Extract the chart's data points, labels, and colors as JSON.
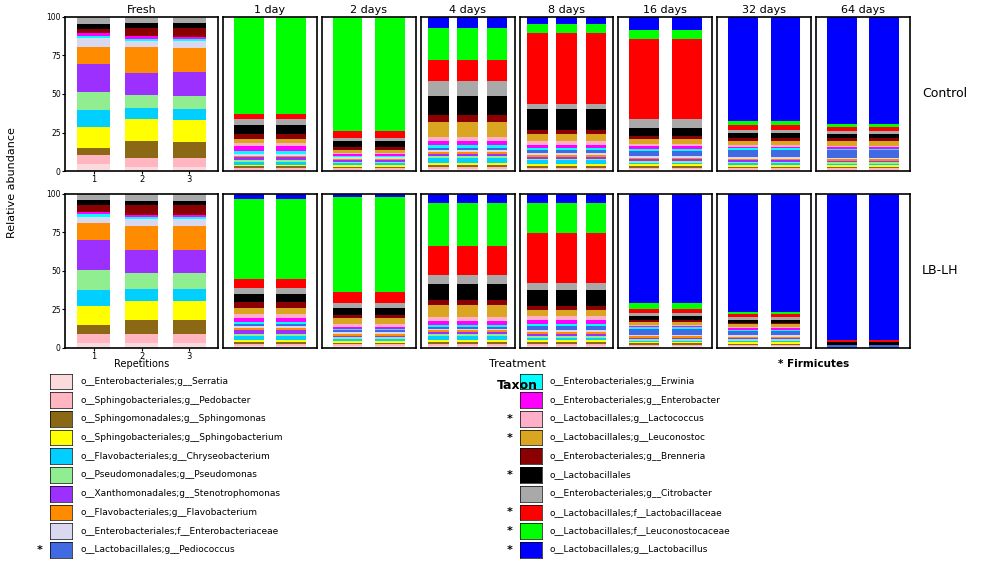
{
  "time_points": [
    "Fresh",
    "1 day",
    "2 days",
    "4 days",
    "8 days",
    "16 days",
    "32 days",
    "64 days"
  ],
  "taxa": [
    "o__Enterobacteriales;g__Serratia",
    "o__Sphingobacteriales;g__Pedobacter",
    "o__Sphingomonadales;g__Sphingomonas",
    "o__Sphingobacteriales;g__Sphingobacterium",
    "o__Flavobacteriales;g__Chryseobacterium",
    "o__Pseudomonadales;g__Pseudomonas",
    "o__Xanthomonadales;g__Stenotrophomonas",
    "o__Flavobacteriales;g__Flavobacterium",
    "o__Enterobacteriales;f__Enterobacteriaceae",
    "o__Lactobacillales;g__Pediococcus",
    "o__Enterobacteriales;g__Erwinia",
    "o__Enterobacteriales;g__Enterobacter",
    "o__Lactobacillales;g__Lactococcus",
    "o__Lactobacillales;g__Leuconostoc",
    "o__Enterobacteriales;g__Brenneria",
    "o__Lactobacillales",
    "o__Enterobacteriales;g__Citrobacter",
    "o__Lactobacillales;f__Lactobacillaceae",
    "o__Lactobacillales;f__Leuconostocaceae",
    "o__Lactobacillales;g__Lactobacillus"
  ],
  "colors": [
    "#FADADD",
    "#FFB6C1",
    "#8B6914",
    "#FFFF00",
    "#00CFFF",
    "#90EE90",
    "#9B30FF",
    "#FF8C00",
    "#D8D8F0",
    "#4169E1",
    "#00FFFF",
    "#FF00FF",
    "#FFB0C8",
    "#DAA520",
    "#8B0000",
    "#000000",
    "#A9A9A9",
    "#FF0000",
    "#00FF00",
    "#0000FF"
  ],
  "legend_stars": [
    false,
    false,
    false,
    false,
    false,
    false,
    false,
    false,
    false,
    true,
    false,
    false,
    true,
    true,
    false,
    true,
    false,
    true,
    true,
    true
  ],
  "ylabel": "Relative abundance",
  "row_labels": [
    "Control",
    "LB-LH"
  ],
  "control_data": {
    "Fresh": [
      [
        3,
        4,
        3,
        9,
        7,
        8,
        12,
        7,
        4,
        0,
        1,
        1,
        0,
        0,
        2,
        2,
        3,
        0,
        0,
        0
      ],
      [
        2,
        4,
        8,
        10,
        5,
        6,
        10,
        12,
        3,
        0,
        1,
        1,
        0,
        0,
        4,
        2,
        3,
        0,
        0,
        0
      ],
      [
        2,
        4,
        7,
        10,
        5,
        6,
        11,
        11,
        3,
        0,
        1,
        1,
        0,
        0,
        4,
        2,
        3,
        0,
        0,
        0
      ]
    ],
    "1 day": [
      [
        1,
        1,
        1,
        1,
        2,
        1,
        2,
        1,
        1,
        0,
        2,
        3,
        2,
        3,
        3,
        6,
        4,
        3,
        63,
        0
      ],
      [
        1,
        1,
        1,
        1,
        2,
        1,
        2,
        1,
        1,
        0,
        2,
        3,
        2,
        3,
        3,
        6,
        4,
        3,
        63,
        0
      ]
    ],
    "2 days": [
      [
        1,
        1,
        1,
        1,
        1,
        1,
        1,
        1,
        1,
        0,
        1,
        1,
        1,
        2,
        2,
        4,
        2,
        4,
        75,
        0
      ],
      [
        1,
        1,
        1,
        1,
        1,
        1,
        1,
        1,
        1,
        0,
        1,
        1,
        1,
        2,
        2,
        4,
        2,
        4,
        75,
        0
      ]
    ],
    "4 days": [
      [
        1,
        1,
        1,
        1,
        2,
        1,
        1,
        1,
        1,
        1,
        1,
        2,
        2,
        7,
        3,
        9,
        7,
        10,
        15,
        5
      ],
      [
        1,
        1,
        1,
        1,
        2,
        1,
        1,
        1,
        1,
        1,
        1,
        2,
        2,
        7,
        3,
        9,
        7,
        10,
        15,
        5
      ],
      [
        1,
        1,
        1,
        1,
        2,
        1,
        1,
        1,
        1,
        1,
        1,
        2,
        2,
        7,
        3,
        9,
        7,
        10,
        15,
        5
      ]
    ],
    "8 days": [
      [
        1,
        1,
        1,
        1,
        2,
        1,
        1,
        1,
        1,
        2,
        1,
        2,
        2,
        4,
        2,
        12,
        3,
        40,
        5,
        4
      ],
      [
        1,
        1,
        1,
        1,
        2,
        1,
        1,
        1,
        1,
        2,
        1,
        2,
        2,
        4,
        2,
        12,
        3,
        40,
        5,
        4
      ],
      [
        1,
        1,
        1,
        1,
        2,
        1,
        1,
        1,
        1,
        2,
        1,
        2,
        2,
        4,
        2,
        12,
        3,
        40,
        5,
        4
      ]
    ],
    "16 days": [
      [
        1,
        1,
        1,
        1,
        1,
        1,
        1,
        1,
        1,
        3,
        1,
        2,
        1,
        3,
        2,
        5,
        5,
        48,
        5,
        8
      ],
      [
        1,
        1,
        1,
        1,
        1,
        1,
        1,
        1,
        1,
        3,
        1,
        2,
        1,
        3,
        2,
        5,
        5,
        48,
        5,
        8
      ]
    ],
    "32 days": [
      [
        1,
        1,
        1,
        1,
        1,
        1,
        1,
        1,
        1,
        5,
        1,
        1,
        1,
        3,
        2,
        3,
        2,
        3,
        3,
        68
      ],
      [
        1,
        1,
        1,
        1,
        1,
        1,
        1,
        1,
        1,
        5,
        1,
        1,
        1,
        3,
        2,
        3,
        2,
        3,
        3,
        68
      ]
    ],
    "64 days": [
      [
        1,
        1,
        1,
        1,
        1,
        1,
        1,
        1,
        1,
        5,
        1,
        1,
        1,
        3,
        2,
        3,
        2,
        3,
        2,
        72
      ],
      [
        1,
        1,
        1,
        1,
        1,
        1,
        1,
        1,
        1,
        5,
        1,
        1,
        1,
        3,
        2,
        3,
        2,
        3,
        2,
        72
      ]
    ]
  },
  "lblh_data": {
    "Fresh": [
      [
        2,
        4,
        4,
        8,
        7,
        9,
        13,
        7,
        3,
        0,
        1,
        1,
        0,
        0,
        3,
        2,
        3,
        0,
        0,
        0
      ],
      [
        2,
        4,
        6,
        8,
        5,
        7,
        10,
        10,
        3,
        0,
        1,
        1,
        0,
        0,
        4,
        2,
        3,
        0,
        0,
        0
      ],
      [
        2,
        4,
        6,
        8,
        5,
        7,
        10,
        10,
        3,
        0,
        1,
        1,
        0,
        0,
        4,
        2,
        3,
        0,
        0,
        0
      ]
    ],
    "1 day": [
      [
        1,
        1,
        1,
        1,
        2,
        1,
        2,
        1,
        1,
        1,
        1,
        2,
        2,
        3,
        3,
        4,
        3,
        5,
        40,
        3
      ],
      [
        1,
        1,
        1,
        1,
        2,
        1,
        2,
        1,
        1,
        1,
        1,
        2,
        2,
        3,
        3,
        4,
        3,
        5,
        40,
        3
      ]
    ],
    "2 days": [
      [
        1,
        1,
        1,
        1,
        1,
        1,
        1,
        1,
        1,
        1,
        1,
        1,
        2,
        3,
        2,
        4,
        3,
        6,
        55,
        2
      ],
      [
        1,
        1,
        1,
        1,
        1,
        1,
        1,
        1,
        1,
        1,
        1,
        1,
        2,
        3,
        2,
        4,
        3,
        6,
        55,
        2
      ]
    ],
    "4 days": [
      [
        1,
        1,
        1,
        1,
        2,
        1,
        1,
        1,
        1,
        1,
        1,
        2,
        2,
        6,
        3,
        8,
        5,
        15,
        22,
        5
      ],
      [
        1,
        1,
        1,
        1,
        2,
        1,
        1,
        1,
        1,
        1,
        1,
        2,
        2,
        6,
        3,
        8,
        5,
        15,
        22,
        5
      ],
      [
        1,
        1,
        1,
        1,
        2,
        1,
        1,
        1,
        1,
        1,
        1,
        2,
        2,
        6,
        3,
        8,
        5,
        15,
        22,
        5
      ]
    ],
    "8 days": [
      [
        1,
        1,
        1,
        1,
        1,
        1,
        1,
        1,
        1,
        2,
        1,
        2,
        2,
        3,
        2,
        8,
        4,
        25,
        15,
        5
      ],
      [
        1,
        1,
        1,
        1,
        1,
        1,
        1,
        1,
        1,
        2,
        1,
        2,
        2,
        3,
        2,
        8,
        4,
        25,
        15,
        5
      ],
      [
        1,
        1,
        1,
        1,
        1,
        1,
        1,
        1,
        1,
        2,
        1,
        2,
        2,
        3,
        2,
        8,
        4,
        25,
        15,
        5
      ]
    ],
    "16 days": [
      [
        1,
        1,
        1,
        1,
        1,
        1,
        1,
        1,
        1,
        4,
        1,
        1,
        1,
        2,
        1,
        3,
        2,
        3,
        4,
        75
      ],
      [
        1,
        1,
        1,
        1,
        1,
        1,
        1,
        1,
        1,
        4,
        1,
        1,
        1,
        2,
        1,
        3,
        2,
        3,
        4,
        75
      ]
    ],
    "32 days": [
      [
        1,
        1,
        1,
        1,
        1,
        1,
        1,
        1,
        1,
        3,
        1,
        1,
        1,
        2,
        1,
        2,
        2,
        2,
        2,
        85
      ],
      [
        1,
        1,
        1,
        1,
        1,
        1,
        1,
        1,
        1,
        3,
        1,
        1,
        1,
        2,
        1,
        2,
        2,
        2,
        2,
        85
      ]
    ],
    "64 days": [
      [
        0,
        0,
        0,
        0,
        0,
        0,
        0,
        0,
        0,
        2,
        0,
        0,
        0,
        0,
        0,
        2,
        0,
        1,
        0,
        95
      ],
      [
        0,
        0,
        0,
        0,
        0,
        0,
        0,
        0,
        0,
        2,
        0,
        0,
        0,
        0,
        0,
        2,
        0,
        1,
        0,
        95
      ]
    ]
  },
  "background_color": "#ffffff"
}
